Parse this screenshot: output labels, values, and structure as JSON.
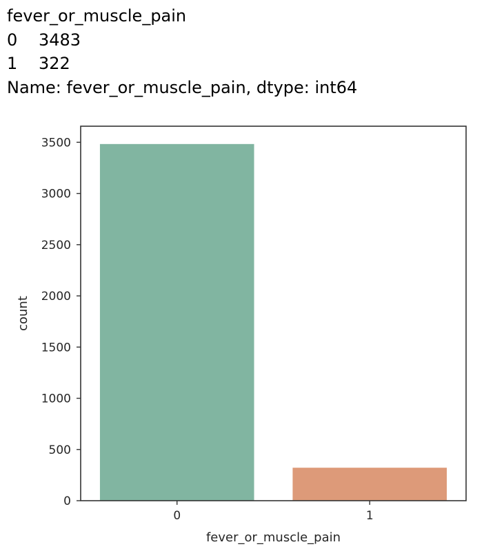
{
  "output": {
    "header": "fever_or_muscle_pain",
    "rows": [
      {
        "index": "0",
        "value": "3483"
      },
      {
        "index": "1",
        "value": "322"
      }
    ],
    "footer": "Name: fever_or_muscle_pain, dtype: int64"
  },
  "chart_data": {
    "type": "bar",
    "categories": [
      "0",
      "1"
    ],
    "values": [
      3483,
      322
    ],
    "title": "",
    "xlabel": "fever_or_muscle_pain",
    "ylabel": "count",
    "ylim": [
      0,
      3657
    ],
    "yticks": [
      0,
      500,
      1000,
      1500,
      2000,
      2500,
      3000,
      3500
    ],
    "colors": [
      "#81b5a1",
      "#dd9a79"
    ],
    "grid": false,
    "legend": "none"
  }
}
